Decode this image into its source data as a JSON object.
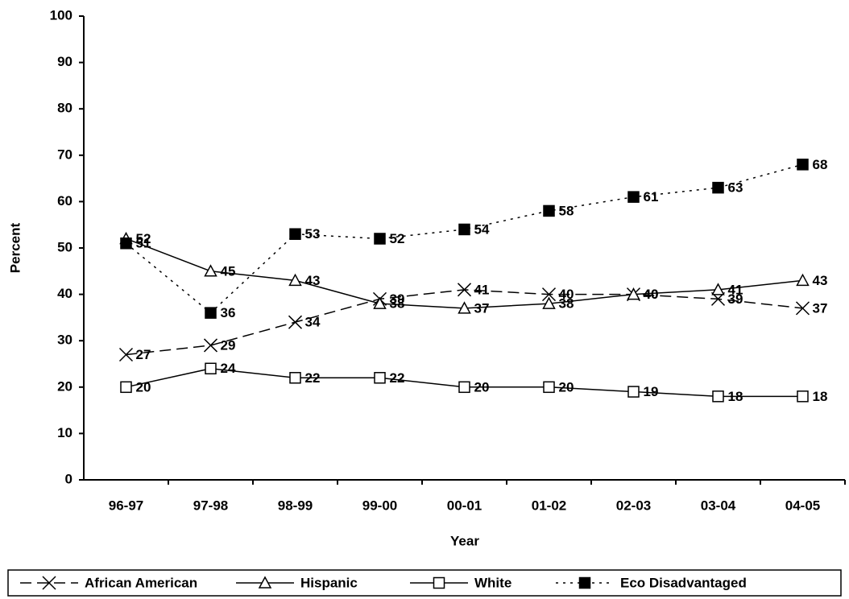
{
  "chart_data": {
    "type": "line",
    "x_label": "Year",
    "y_label": "Percent",
    "categories": [
      "96-97",
      "97-98",
      "98-99",
      "99-00",
      "00-01",
      "01-02",
      "02-03",
      "03-04",
      "04-05"
    ],
    "ylim": [
      0,
      100
    ],
    "yticks": [
      0,
      10,
      20,
      30,
      40,
      50,
      60,
      70,
      80,
      90,
      100
    ],
    "series": [
      {
        "name": "African American",
        "color": "#000000",
        "line_style": "dashed",
        "marker": "x",
        "values": [
          27,
          29,
          34,
          39,
          41,
          40,
          40,
          39,
          37
        ]
      },
      {
        "name": "Hispanic",
        "color": "#000000",
        "line_style": "solid",
        "marker": "triangle",
        "values": [
          52,
          45,
          43,
          38,
          37,
          38,
          40,
          41,
          43
        ]
      },
      {
        "name": "White",
        "color": "#000000",
        "line_style": "solid",
        "marker": "square",
        "values": [
          20,
          24,
          22,
          22,
          20,
          20,
          19,
          18,
          18
        ]
      },
      {
        "name": "Eco Disadvantaged",
        "color": "#000000",
        "line_style": "dotted",
        "marker": "filled-square",
        "values": [
          51,
          36,
          53,
          52,
          54,
          58,
          61,
          63,
          68
        ]
      }
    ]
  }
}
